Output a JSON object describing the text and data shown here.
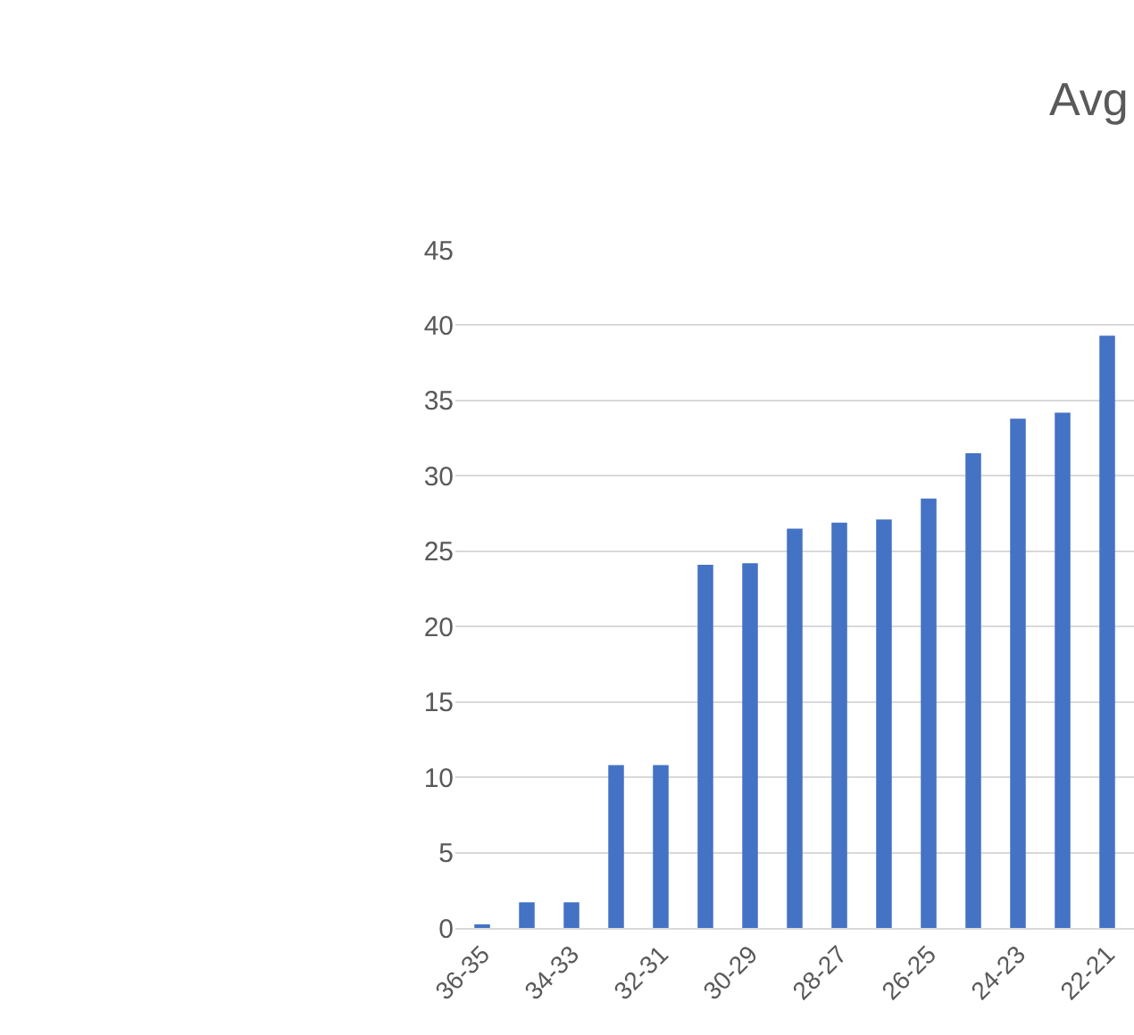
{
  "chart_data": {
    "type": "bar",
    "title": "Avg",
    "categories": [
      "36-35",
      null,
      "34-33",
      null,
      "32-31",
      null,
      "30-29",
      null,
      "28-27",
      null,
      "26-25",
      null,
      "24-23",
      null,
      "22-21"
    ],
    "values": [
      0.2,
      1.7,
      1.7,
      10.8,
      10.8,
      24.1,
      24.2,
      26.5,
      26.9,
      27.1,
      28.5,
      31.5,
      33.8,
      34.2,
      39.3
    ],
    "color": "#4472c4",
    "ylim": [
      0,
      45
    ],
    "yticks": [
      0,
      5,
      10,
      15,
      20,
      25,
      30,
      35,
      40,
      45
    ],
    "grid": "y"
  }
}
